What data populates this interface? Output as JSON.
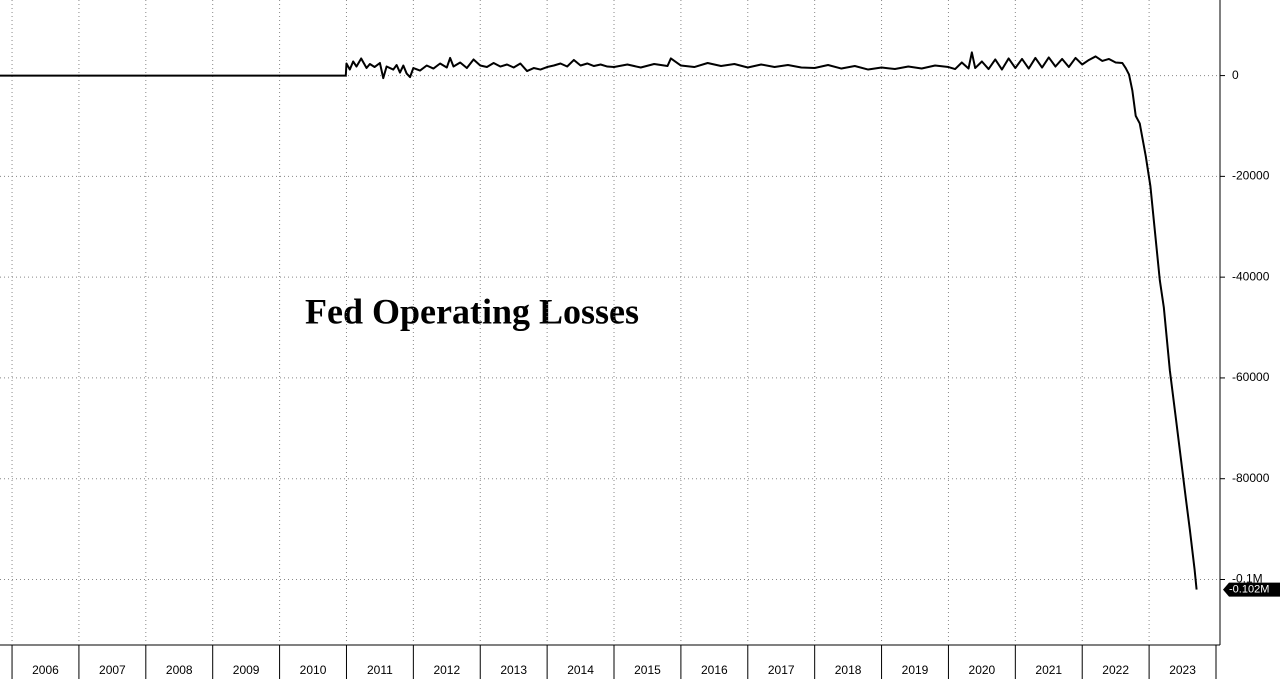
{
  "chart_data": {
    "type": "line",
    "title": "Fed Operating Losses",
    "x": [
      2005.82,
      2010.99,
      2011.0,
      2011.05,
      2011.1,
      2011.15,
      2011.22,
      2011.3,
      2011.35,
      2011.42,
      2011.5,
      2011.55,
      2011.6,
      2011.7,
      2011.75,
      2011.8,
      2011.85,
      2011.9,
      2011.95,
      2012.0,
      2012.1,
      2012.2,
      2012.3,
      2012.4,
      2012.5,
      2012.55,
      2012.6,
      2012.7,
      2012.8,
      2012.9,
      2013.0,
      2013.1,
      2013.2,
      2013.3,
      2013.4,
      2013.5,
      2013.6,
      2013.7,
      2013.8,
      2013.9,
      2014.0,
      2014.1,
      2014.2,
      2014.3,
      2014.4,
      2014.5,
      2014.6,
      2014.7,
      2014.8,
      2014.9,
      2015.0,
      2015.2,
      2015.4,
      2015.6,
      2015.8,
      2015.85,
      2016.0,
      2016.2,
      2016.4,
      2016.6,
      2016.8,
      2017.0,
      2017.2,
      2017.4,
      2017.6,
      2017.8,
      2018.0,
      2018.2,
      2018.4,
      2018.6,
      2018.8,
      2019.0,
      2019.2,
      2019.4,
      2019.6,
      2019.8,
      2020.0,
      2020.1,
      2020.2,
      2020.3,
      2020.35,
      2020.4,
      2020.5,
      2020.6,
      2020.7,
      2020.8,
      2020.9,
      2021.0,
      2021.1,
      2021.2,
      2021.3,
      2021.4,
      2021.5,
      2021.6,
      2021.7,
      2021.8,
      2021.9,
      2022.0,
      2022.1,
      2022.2,
      2022.3,
      2022.4,
      2022.5,
      2022.6,
      2022.65,
      2022.7,
      2022.75,
      2022.8,
      2022.86,
      2022.95,
      2023.02,
      2023.08,
      2023.16,
      2023.22,
      2023.31,
      2023.4,
      2023.46,
      2023.55,
      2023.61,
      2023.68,
      2023.71
    ],
    "series": [
      {
        "color": "#000000",
        "values": [
          0,
          0,
          2400,
          1200,
          2800,
          1800,
          3400,
          1500,
          2300,
          1700,
          2500,
          -500,
          1800,
          1200,
          2100,
          600,
          2000,
          400,
          -300,
          1500,
          1000,
          2000,
          1400,
          2400,
          1600,
          3500,
          1800,
          2600,
          1500,
          3200,
          2000,
          1700,
          2500,
          1800,
          2200,
          1600,
          2400,
          900,
          1500,
          1200,
          1700,
          2000,
          2400,
          1800,
          3100,
          2000,
          2400,
          1900,
          2200,
          1800,
          1700,
          2200,
          1600,
          2300,
          1900,
          3400,
          2000,
          1700,
          2500,
          1900,
          2300,
          1600,
          2200,
          1700,
          2100,
          1600,
          1500,
          2100,
          1400,
          1900,
          1200,
          1600,
          1300,
          1800,
          1400,
          2000,
          1700,
          1300,
          2600,
          1400,
          4600,
          1500,
          2800,
          1300,
          3200,
          1200,
          3400,
          1500,
          3300,
          1400,
          3500,
          1600,
          3600,
          1800,
          3300,
          1700,
          3500,
          2200,
          3100,
          3800,
          2900,
          3300,
          2600,
          2500,
          1500,
          200,
          -3000,
          -8000,
          -9500,
          -16000,
          -22000,
          -30000,
          -40600,
          -46000,
          -58500,
          -68000,
          -74400,
          -84000,
          -90200,
          -98000,
          -102000
        ]
      }
    ],
    "end_label": {
      "value": -102000,
      "label": "-0.102M"
    },
    "xlim": [
      2005.82,
      2024.06
    ],
    "xticks": [
      2006,
      2007,
      2008,
      2009,
      2010,
      2011,
      2012,
      2013,
      2014,
      2015,
      2016,
      2017,
      2018,
      2019,
      2020,
      2021,
      2022,
      2023
    ],
    "ylim": [
      -113000,
      15000
    ],
    "yticks": [
      0,
      -20000,
      -40000,
      -60000,
      -80000,
      {
        "value": -100000,
        "label": "-0.1M"
      }
    ],
    "grid": true
  }
}
